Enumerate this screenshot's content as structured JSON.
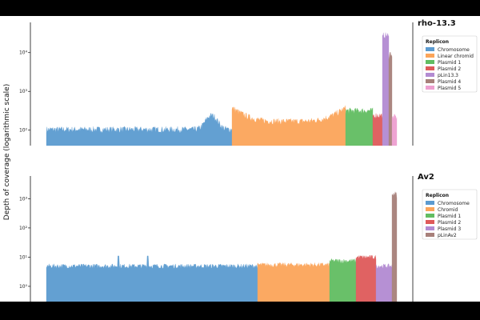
{
  "ylabel": "Depth of coverage (logarithmic scale)",
  "chart_data": [
    {
      "type": "area",
      "title": "rho-13.3",
      "legend_title": "Replicon",
      "legend_position": "right",
      "y_scale": "log",
      "ylim": [
        40,
        60000
      ],
      "y_ticks": [
        {
          "value": 100,
          "label": "10²"
        },
        {
          "value": 1000,
          "label": "10³"
        },
        {
          "value": 10000,
          "label": "10⁴"
        }
      ],
      "series": [
        {
          "name": "Chromosome",
          "color": "#5b9bd0",
          "depth": 105,
          "shape": "hump",
          "peak": 240
        },
        {
          "name": "Linear chromid",
          "color": "#fba55a",
          "depth": 170,
          "shape": "valley",
          "peak": 380
        },
        {
          "name": "Plasmid 1",
          "color": "#62bd62",
          "depth": 320,
          "shape": "flat"
        },
        {
          "name": "Plasmid 2",
          "color": "#df5a5a",
          "depth": 240,
          "shape": "flat"
        },
        {
          "name": "pLin13.3",
          "color": "#b38bd2",
          "depth": 28000,
          "shape": "spike"
        },
        {
          "name": "Plasmid 4",
          "color": "#a7807a",
          "depth": 9500,
          "shape": "spike"
        },
        {
          "name": "Plasmid 5",
          "color": "#ee9fd0",
          "depth": 220,
          "shape": "spike"
        }
      ]
    },
    {
      "type": "area",
      "title": "Av2",
      "legend_title": "Replicon",
      "legend_position": "right",
      "y_scale": "log",
      "ylim": [
        0.3,
        6000
      ],
      "y_ticks": [
        {
          "value": 1,
          "label": "10⁰"
        },
        {
          "value": 10,
          "label": "10¹"
        },
        {
          "value": 100,
          "label": "10²"
        },
        {
          "value": 1000,
          "label": "10³"
        }
      ],
      "series": [
        {
          "name": "Chromosome",
          "color": "#5b9bd0",
          "depth": 5,
          "shape": "flat"
        },
        {
          "name": "Chromid",
          "color": "#fba55a",
          "depth": 5.5,
          "shape": "flat"
        },
        {
          "name": "Plasmid 1",
          "color": "#62bd62",
          "depth": 7.5,
          "shape": "flat"
        },
        {
          "name": "Plasmid 2",
          "color": "#df5a5a",
          "depth": 10,
          "shape": "flat"
        },
        {
          "name": "Plasmid 3",
          "color": "#b38bd2",
          "depth": 5,
          "shape": "flat"
        },
        {
          "name": "pLinAv2",
          "color": "#a7807a",
          "depth": 1500,
          "shape": "spike"
        }
      ]
    }
  ]
}
